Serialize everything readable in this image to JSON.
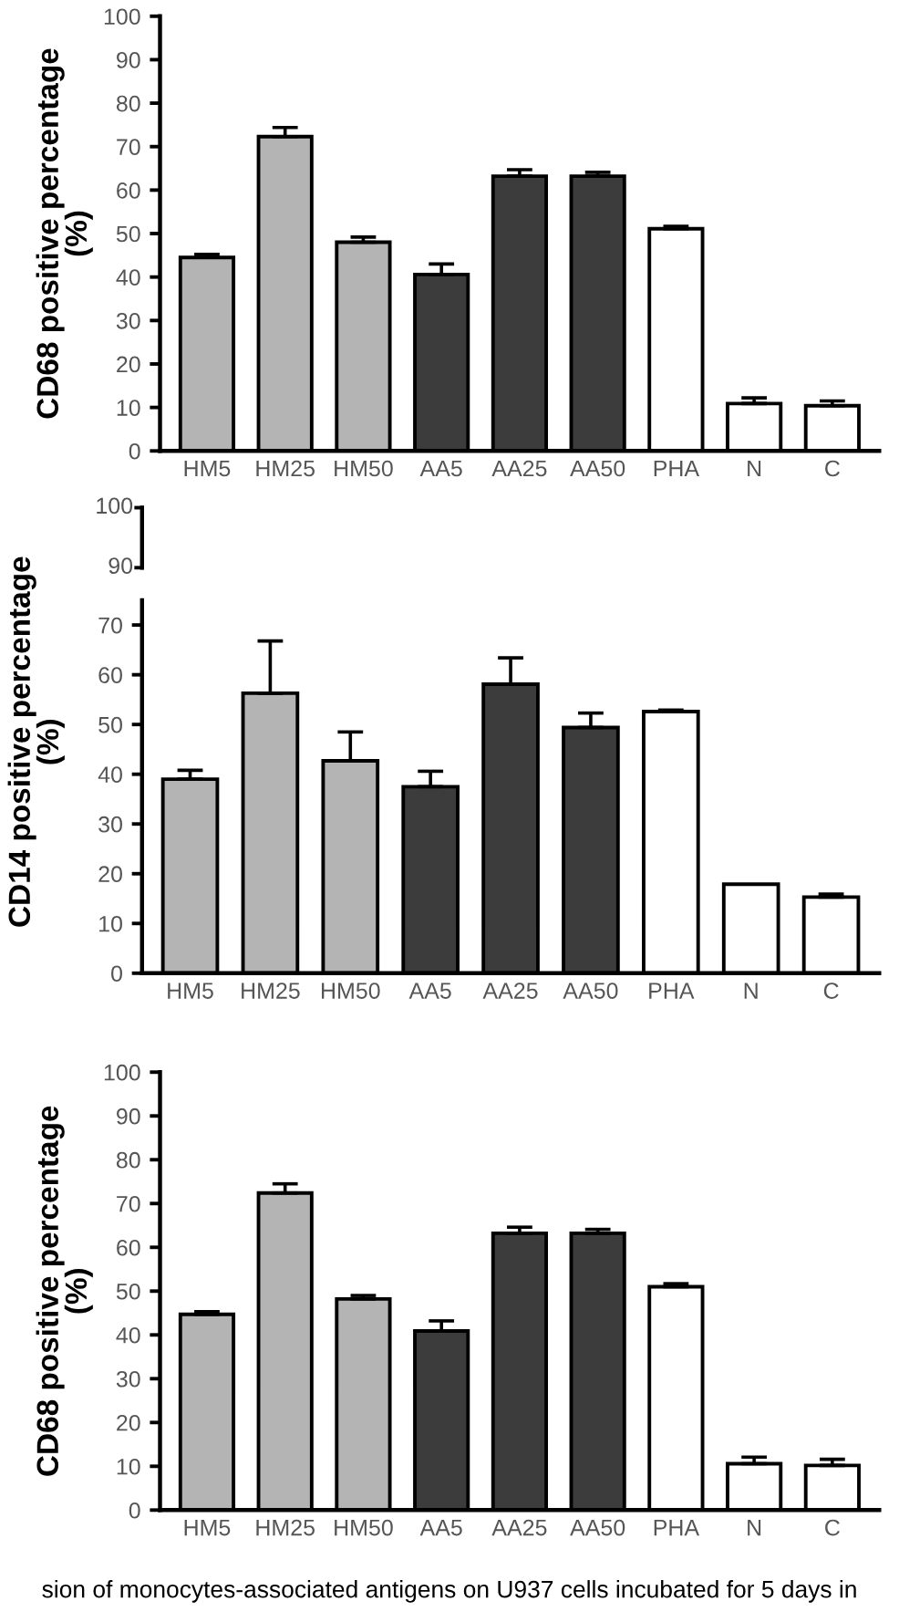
{
  "chart_data": [
    {
      "type": "bar",
      "ylabel": "CD68 positive percentage\n(%)",
      "categories": [
        "HM5",
        "HM25",
        "HM50",
        "AA5",
        "AA25",
        "AA50",
        "PHA",
        "N",
        "C"
      ],
      "values": [
        44.5,
        72.3,
        48.0,
        40.6,
        63.2,
        63.2,
        51.1,
        10.9,
        10.4
      ],
      "errors": [
        [
          44.5,
          45.2
        ],
        [
          72.3,
          74.4
        ],
        [
          48.0,
          49.2
        ],
        [
          40.6,
          43.0
        ],
        [
          63.2,
          64.7
        ],
        [
          63.2,
          64.1
        ],
        [
          51.1,
          51.7
        ],
        [
          10.9,
          12.2
        ],
        [
          10.4,
          11.5
        ]
      ],
      "colors": [
        "#b4b4b4",
        "#b4b4b4",
        "#b4b4b4",
        "#3c3c3c",
        "#3c3c3c",
        "#3c3c3c",
        "#ffffff",
        "#ffffff",
        "#ffffff"
      ],
      "ylim": [
        0,
        100
      ],
      "yticks": [
        0,
        10,
        20,
        30,
        40,
        50,
        60,
        70,
        80,
        90,
        100
      ],
      "grid": false,
      "legend": false
    },
    {
      "type": "other",
      "annotations": [
        "100",
        "90"
      ]
    },
    {
      "type": "bar",
      "ylabel": "CD14 positive percentage\n(%)",
      "categories": [
        "HM5",
        "HM25",
        "HM50",
        "AA5",
        "AA25",
        "AA50",
        "PHA",
        "N",
        "C"
      ],
      "values": [
        39.0,
        56.3,
        42.7,
        37.5,
        58.1,
        49.4,
        52.6,
        17.9,
        15.3
      ],
      "errors": [
        [
          39.0,
          40.8
        ],
        [
          56.3,
          66.8
        ],
        [
          42.7,
          48.5
        ],
        [
          37.5,
          40.6
        ],
        [
          58.1,
          63.4
        ],
        [
          49.4,
          52.3
        ],
        [
          52.6,
          52.9
        ],
        null,
        [
          15.3,
          15.9
        ]
      ],
      "colors": [
        "#b4b4b4",
        "#b4b4b4",
        "#b4b4b4",
        "#3c3c3c",
        "#3c3c3c",
        "#3c3c3c",
        "#ffffff",
        "#ffffff",
        "#ffffff"
      ],
      "ylim": [
        0,
        75
      ],
      "yticks": [
        0,
        10,
        20,
        30,
        40,
        50,
        60,
        70
      ],
      "grid": false,
      "legend": false
    },
    {
      "type": "bar",
      "ylabel": "CD68 positive percentage\n(%)",
      "categories": [
        "HM5",
        "HM25",
        "HM50",
        "AA5",
        "AA25",
        "AA50",
        "PHA",
        "N",
        "C"
      ],
      "values": [
        44.7,
        72.4,
        48.2,
        40.9,
        63.2,
        63.2,
        51.0,
        10.6,
        10.2
      ],
      "errors": [
        [
          44.7,
          45.3
        ],
        [
          72.4,
          74.5
        ],
        [
          48.2,
          49.0
        ],
        [
          40.9,
          43.2
        ],
        [
          63.2,
          64.6
        ],
        [
          63.2,
          64.1
        ],
        [
          51.0,
          51.7
        ],
        [
          10.6,
          12.1
        ],
        [
          10.2,
          11.6
        ]
      ],
      "colors": [
        "#b4b4b4",
        "#b4b4b4",
        "#b4b4b4",
        "#3c3c3c",
        "#3c3c3c",
        "#3c3c3c",
        "#ffffff",
        "#ffffff",
        "#ffffff"
      ],
      "ylim": [
        0,
        100
      ],
      "yticks": [
        0,
        10,
        20,
        30,
        40,
        50,
        60,
        70,
        80,
        90,
        100
      ],
      "grid": false,
      "legend": false,
      "annotations": [
        "sion of monocytes-associated antigens on U937 cells incubated for 5 days in"
      ]
    }
  ]
}
